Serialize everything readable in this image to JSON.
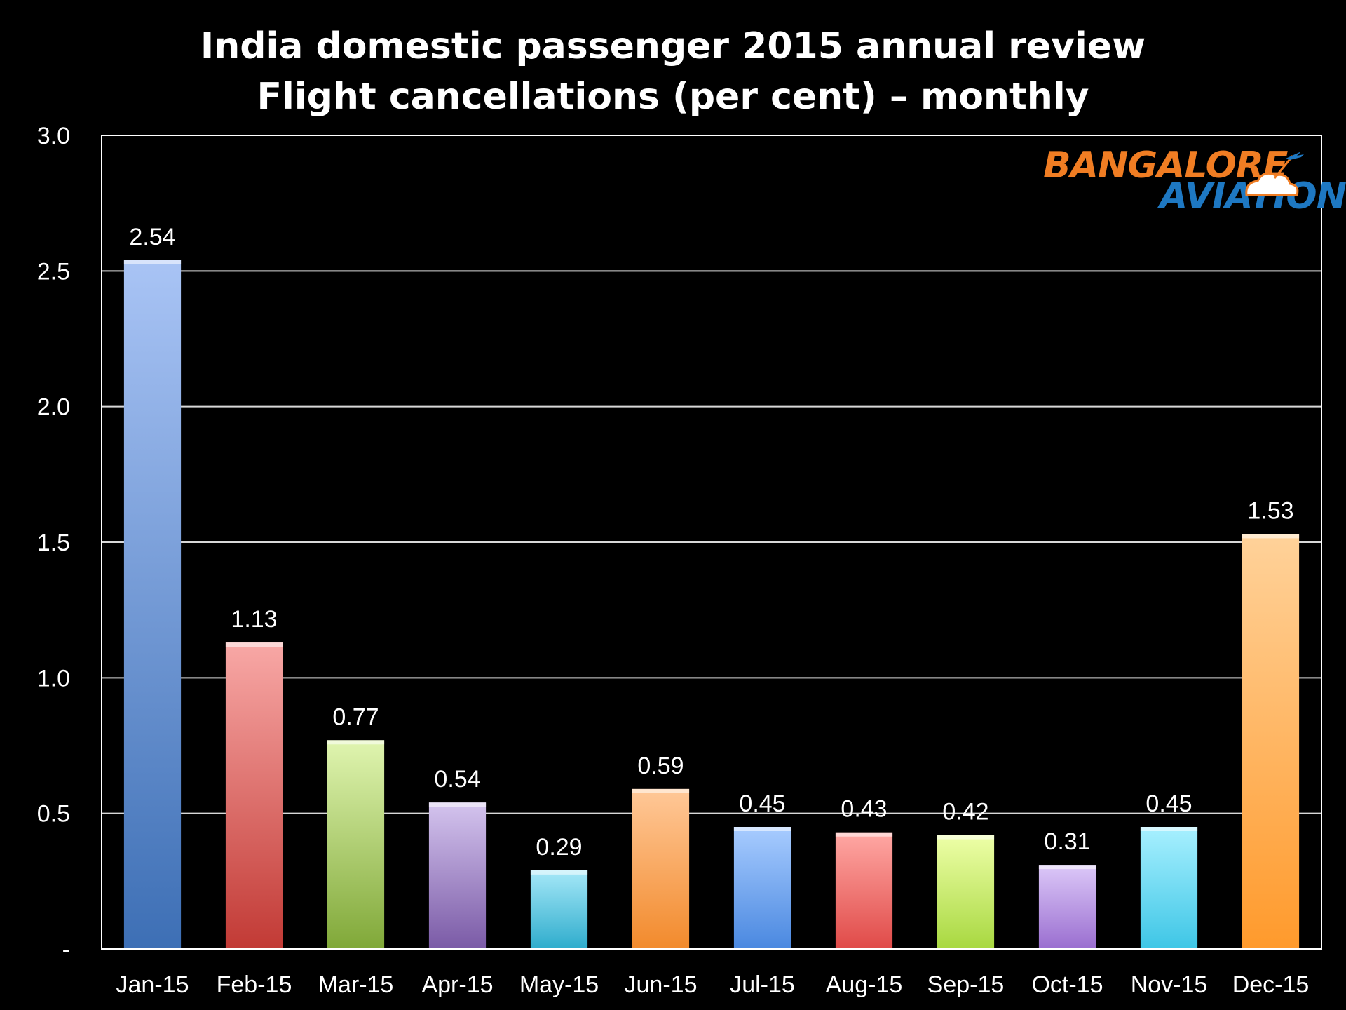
{
  "chart_data": {
    "type": "bar",
    "title": [
      "India domestic passenger 2015 annual review",
      "Flight cancellations (per cent) – monthly"
    ],
    "categories": [
      "Jan-15",
      "Feb-15",
      "Mar-15",
      "Apr-15",
      "May-15",
      "Jun-15",
      "Jul-15",
      "Aug-15",
      "Sep-15",
      "Oct-15",
      "Nov-15",
      "Dec-15"
    ],
    "values": [
      2.54,
      1.13,
      0.77,
      0.54,
      0.29,
      0.59,
      0.45,
      0.43,
      0.42,
      0.31,
      0.45,
      1.53
    ],
    "data_labels": [
      "2.54",
      "1.13",
      "0.77",
      "0.54",
      "0.29",
      "0.59",
      "0.45",
      "0.43",
      "0.42",
      "0.31",
      "0.45",
      "1.53"
    ],
    "ylim": [
      0,
      3.0
    ],
    "yticks": [
      0,
      0.5,
      1.0,
      1.5,
      2.0,
      2.5,
      3.0
    ],
    "ytick_labels": [
      "-",
      "0.5",
      "1.0",
      "1.5",
      "2.0",
      "2.5",
      "3.0"
    ],
    "xlabel": "",
    "ylabel": "",
    "grid": true,
    "legend": "none",
    "bar_colors": [
      [
        "#a9c4f5",
        "#3d6fb5"
      ],
      [
        "#f8a8a6",
        "#c23a35"
      ],
      [
        "#e0f5b0",
        "#80a838"
      ],
      [
        "#d4c4ee",
        "#7a5aa6"
      ],
      [
        "#a6e8f8",
        "#2eaccc"
      ],
      [
        "#ffc898",
        "#f28a2c"
      ],
      [
        "#a8ccff",
        "#4a88e0"
      ],
      [
        "#ffa8a4",
        "#e04a48"
      ],
      [
        "#eeffa8",
        "#a8d840"
      ],
      [
        "#dcc8f8",
        "#9a6ed0"
      ],
      [
        "#a8f0ff",
        "#3ec6e6"
      ],
      [
        "#ffd29a",
        "#ff9a2c"
      ]
    ],
    "colors": {
      "background": "#000000",
      "axis": "#ffffff",
      "grid": "#d8d8d8",
      "text": "#ffffff"
    }
  },
  "logo": {
    "line1": "BANGALORE",
    "line2": "AVIATION"
  }
}
